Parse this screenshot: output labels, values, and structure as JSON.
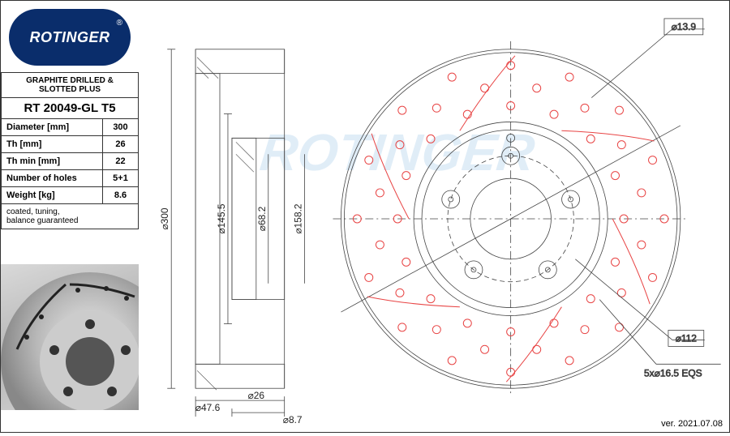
{
  "brand": {
    "name": "ROTINGER",
    "registered": "®",
    "logo_bg": "#0a2d6b",
    "logo_text_color": "#ffffff"
  },
  "spec": {
    "header": "GRAPHITE DRILLED & SLOTTED PLUS",
    "part_no": "RT 20049-GL T5",
    "rows": [
      {
        "label": "Diameter [mm]",
        "value": "300"
      },
      {
        "label": "Th [mm]",
        "value": "26"
      },
      {
        "label": "Th min [mm]",
        "value": "22"
      },
      {
        "label": "Number of holes",
        "value": "5+1"
      },
      {
        "label": "Weight [kg]",
        "value": "8.6"
      }
    ],
    "footer": "coated, tuning,\nbalance guaranteed"
  },
  "side_view": {
    "dims": {
      "outer_diameter": "⌀300",
      "hat_diameter": "⌀145.5",
      "bore_diameter": "⌀68.2",
      "pilot_diameter": "⌀47.6",
      "thickness": "⌀26",
      "stud_through": "⌀8.7"
    },
    "colors": {
      "line": "#444444",
      "fill_bg": "#ffffff"
    }
  },
  "front_view": {
    "dims": {
      "drill_hole_diameter": "⌀13.9",
      "bolt_circle": "⌀112",
      "bolt_hole_spec": "5x⌀16.5 EQS",
      "hub_register": "⌀158.2"
    },
    "geometry": {
      "outer_r": 210,
      "inner_r": 120,
      "hub_outer_r": 110,
      "bore_r": 50,
      "bolt_circle_r": 78,
      "n_bolt": 5,
      "n_drill_rings": 3,
      "drill_ring_r": [
        140,
        165,
        190
      ],
      "drill_per_ring": 16,
      "drill_r": 5,
      "n_slots": 6
    },
    "colors": {
      "outline": "#444444",
      "drill": "#e84444",
      "slot": "#e84444",
      "construction": "#5aa0d8"
    }
  },
  "watermark": "ROTINGER",
  "version": "ver. 2021.07.08"
}
